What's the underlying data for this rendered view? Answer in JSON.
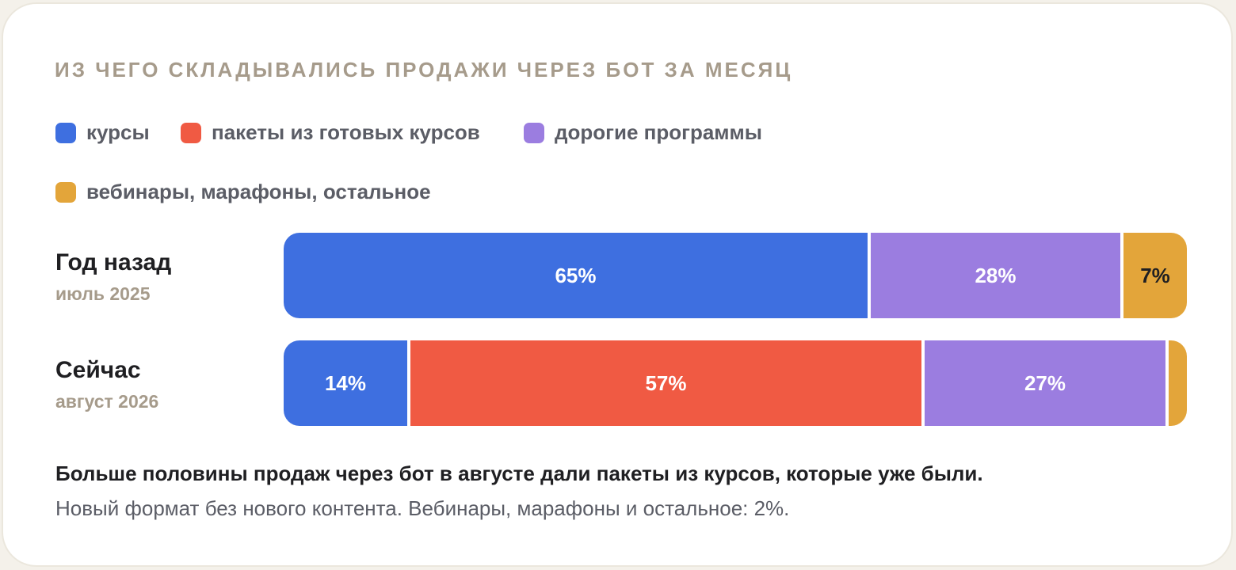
{
  "chart_data": {
    "type": "bar",
    "orientation": "horizontal",
    "stacked": true,
    "title": "ИЗ ЧЕГО СКЛАДЫВАЛИСЬ ПРОДАЖИ ЧЕРЕЗ БОТ ЗА МЕСЯЦ",
    "categories": [
      {
        "label": "Год назад",
        "sublabel": "июль 2025"
      },
      {
        "label": "Сейчас",
        "sublabel": "август 2026"
      }
    ],
    "series": [
      {
        "name": "курсы",
        "color": "#3e6fe0",
        "values": [
          65,
          14
        ]
      },
      {
        "name": "пакеты из готовых курсов",
        "color": "#f05a43",
        "values": [
          0,
          57
        ]
      },
      {
        "name": "дорогие программы",
        "color": "#9b7de0",
        "values": [
          28,
          27
        ]
      },
      {
        "name": "вебинары, марафоны, остальное",
        "color": "#e3a53a",
        "values": [
          7,
          2
        ]
      }
    ],
    "value_labels": [
      [
        "65%",
        "",
        "28%",
        "7%"
      ],
      [
        "14%",
        "57%",
        "27%",
        ""
      ]
    ],
    "xlim": [
      0,
      100
    ],
    "unit": "%",
    "grid": false,
    "legend": "top-left"
  },
  "summary": {
    "bold": "Больше половины продаж через бот в августе дали пакеты из курсов, которые уже были.",
    "normal": "Новый формат без нового контента. Вебинары, марафоны и остальное: 2%."
  }
}
